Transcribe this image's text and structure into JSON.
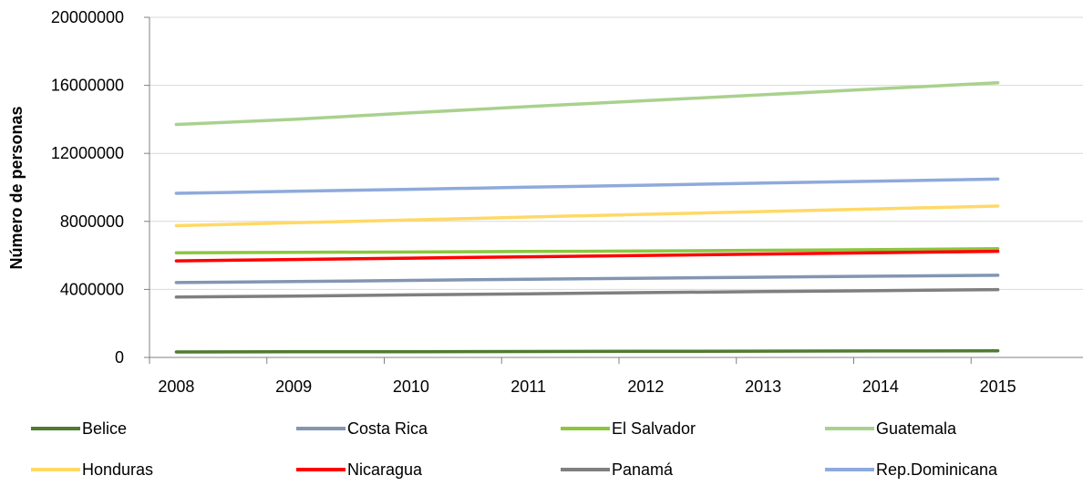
{
  "chart_data": {
    "type": "line",
    "title": "",
    "xlabel": "",
    "ylabel": "Número de personas",
    "x": [
      "2008",
      "2009",
      "2010",
      "2011",
      "2012",
      "2013",
      "2014",
      "2015"
    ],
    "ylim": [
      0,
      20000000
    ],
    "yticks": [
      "0",
      "4000000",
      "8000000",
      "12000000",
      "16000000",
      "20000000"
    ],
    "grid": "horizontal",
    "legend_position": "bottom",
    "series": [
      {
        "name": "Belice",
        "color": "#4e7c2f",
        "values": [
          320000,
          330000,
          340000,
          350000,
          360000,
          370000,
          380000,
          390000
        ]
      },
      {
        "name": "Costa Rica",
        "color": "#8296b2",
        "values": [
          4400000,
          4460000,
          4530000,
          4600000,
          4660000,
          4720000,
          4780000,
          4830000
        ]
      },
      {
        "name": "El Salvador",
        "color": "#8cc63e",
        "values": [
          6150000,
          6180000,
          6200000,
          6230000,
          6260000,
          6300000,
          6340000,
          6390000
        ]
      },
      {
        "name": "Guatemala",
        "color": "#a9d18e",
        "values": [
          13700000,
          14000000,
          14380000,
          14750000,
          15100000,
          15450000,
          15800000,
          16150000
        ]
      },
      {
        "name": "Honduras",
        "color": "#ffd966",
        "values": [
          7750000,
          7920000,
          8080000,
          8260000,
          8420000,
          8580000,
          8740000,
          8900000
        ]
      },
      {
        "name": "Nicaragua",
        "color": "#ff0000",
        "values": [
          5680000,
          5760000,
          5840000,
          5920000,
          6000000,
          6080000,
          6160000,
          6240000
        ]
      },
      {
        "name": "Panamá",
        "color": "#7f7f7f",
        "values": [
          3550000,
          3610000,
          3680000,
          3740000,
          3810000,
          3870000,
          3930000,
          3990000
        ]
      },
      {
        "name": "Rep.Dominicana",
        "color": "#8eaadb",
        "values": [
          9650000,
          9770000,
          9890000,
          10010000,
          10130000,
          10250000,
          10370000,
          10490000
        ]
      }
    ]
  }
}
